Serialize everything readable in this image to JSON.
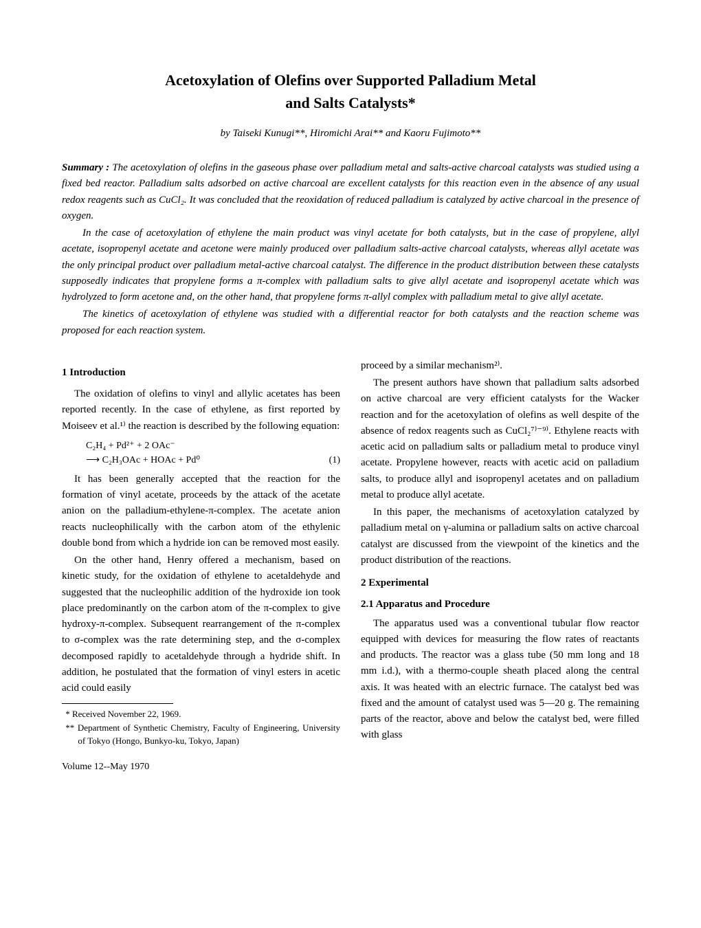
{
  "title_line1": "Acetoxylation of Olefins over Supported Palladium Metal",
  "title_line2": "and Salts Catalysts*",
  "authors": "by Taiseki Kunugi**, Hiromichi Arai** and Kaoru Fujimoto**",
  "summary_label": "Summary :",
  "summary_p1_after_label": "   The acetoxylation of olefins in the gaseous phase over palladium metal and salts-active charcoal catalysts was studied using a fixed bed reactor.   Palladium salts adsorbed on active charcoal are excellent catalysts for this reaction even in the absence of any usual redox reagents such as CuCl₂. It was concluded that the reoxidation of reduced palladium is catalyzed by active charcoal in the presence of oxygen.",
  "summary_p2": "In the case of acetoxylation of ethylene the main product was vinyl acetate for both catalysts, but in the case of propylene, allyl acetate, isopropenyl acetate and acetone were mainly produced over palladium salts-active charcoal catalysts, whereas allyl acetate was the only principal product over palladium metal-active charcoal catalyst.   The difference in the product distribution between these catalysts supposedly indicates that propylene forms a π-complex with palladium salts to give allyl acetate and isopropenyl acetate which was hydrolyzed to form acetone and, on the other hand, that propylene forms π-allyl complex with palladium metal to give allyl acetate.",
  "summary_p3": "The kinetics of acetoxylation of ethylene was studied with a differential reactor for both catalysts and the reaction scheme was proposed for each reaction system.",
  "sec1_heading": "1  Introduction",
  "sec1_p1": "The oxidation of olefins to vinyl and allylic acetates has been reported recently.  In the case of ethylene, as first reported by Moiseev et al.¹⁾ the reaction is described by the following equation:",
  "eq1_line1": "C₂H₄ + Pd²⁺ + 2 OAc⁻",
  "eq1_line2": "⟶ C₂H₃OAc + HOAc + Pd⁰",
  "eq1_num": "(1)",
  "sec1_p2": "It has been generally accepted that the reaction for the formation of vinyl acetate, proceeds by the attack of the acetate anion on the palladium-ethylene-π-complex.  The acetate anion reacts nucleophilically with the carbon atom of the ethylenic double bond from which a hydride ion can be removed most easily.",
  "sec1_p3": "On the other hand, Henry offered a mechanism, based on kinetic study, for the oxidation of ethylene to acetaldehyde and suggested that the nucleophilic addition of the hydroxide ion took place predominantly on the carbon atom of the π-complex to give hydroxy-π-complex.  Subsequent rearrangement of the π-complex to σ-complex was the rate determining step, and the σ-complex decomposed rapidly to acetaldehyde through a hydride shift.  In addition, he postulated that the formation of vinyl esters in acetic acid could easily",
  "col2_p1": "proceed by a similar mechanism²⁾.",
  "col2_p2": "The present authors have shown that palladium salts adsorbed on active charcoal are very efficient catalysts for the Wacker reaction and for the acetoxylation of olefins as well despite of the absence of redox reagents such as CuCl₂⁷⁾⁻⁹⁾.  Ethylene reacts with acetic acid on palladium salts or palladium metal to produce vinyl acetate. Propylene however, reacts with acetic acid on palladium salts, to produce allyl and isopropenyl acetates and on palladium metal to produce allyl acetate.",
  "col2_p3": "In this paper, the mechanisms of acetoxylation catalyzed by palladium metal on γ-alumina or palladium salts on active charcoal catalyst are discussed from the viewpoint of the kinetics and the product distribution of the reactions.",
  "sec2_heading": "2  Experimental",
  "sec21_heading": "2.1  Apparatus and Procedure",
  "sec21_p1": "The apparatus used was a conventional tubular flow reactor equipped with devices for measuring the flow rates of reactants and products.  The reactor was a glass tube (50 mm long and 18 mm i.d.), with a thermo-couple sheath placed along the central axis.  It was heated with an electric furnace.  The catalyst bed was fixed and the amount of catalyst used was 5—20 g. The remaining parts of the reactor, above and below the catalyst bed, were filled with glass",
  "footnote1": "*   Received November 22, 1969.",
  "footnote2": "**  Department of Synthetic Chemistry, Faculty of Engineering, University of Tokyo (Hongo, Bunkyo-ku, Tokyo, Japan)",
  "footer_text": "Volume 12--May 1970"
}
